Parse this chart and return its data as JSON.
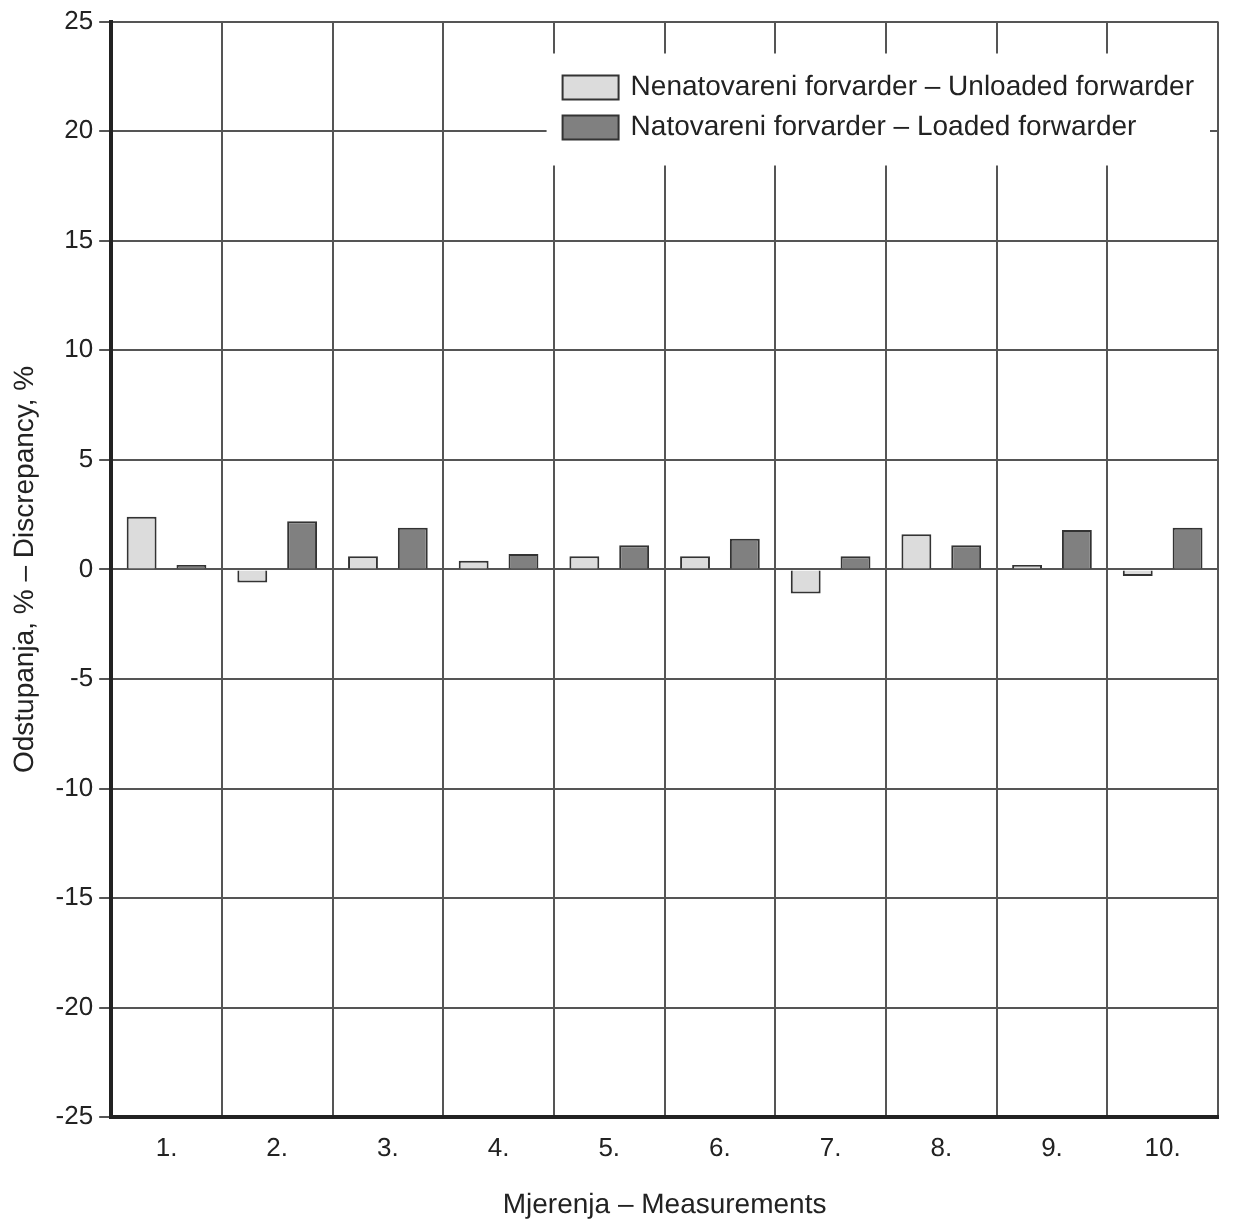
{
  "chart_data": {
    "type": "bar",
    "xlabel": "Mjerenja – Measurements",
    "ylabel": "Odstupanja, % – Discrepancy, %",
    "categories": [
      "1.",
      "2.",
      "3.",
      "4.",
      "5.",
      "6.",
      "7.",
      "8.",
      "9.",
      "10."
    ],
    "series": [
      {
        "name": "Nenatovareni forvarder – Unloaded forwarder",
        "color": "#dcdcdc",
        "values": [
          2.4,
          -0.6,
          0.6,
          0.4,
          0.6,
          0.6,
          -1.1,
          1.6,
          0.2,
          -0.3
        ]
      },
      {
        "name": "Natovareni forvarder – Loaded forwarder",
        "color": "#808080",
        "values": [
          0.2,
          2.2,
          1.9,
          0.7,
          1.1,
          1.4,
          0.6,
          1.1,
          1.8,
          1.9
        ]
      }
    ],
    "ylim": [
      -25,
      25
    ],
    "yticks": [
      -25,
      -20,
      -15,
      -10,
      -5,
      0,
      5,
      10,
      15,
      20,
      25
    ],
    "grid": true,
    "legend": "top right"
  }
}
